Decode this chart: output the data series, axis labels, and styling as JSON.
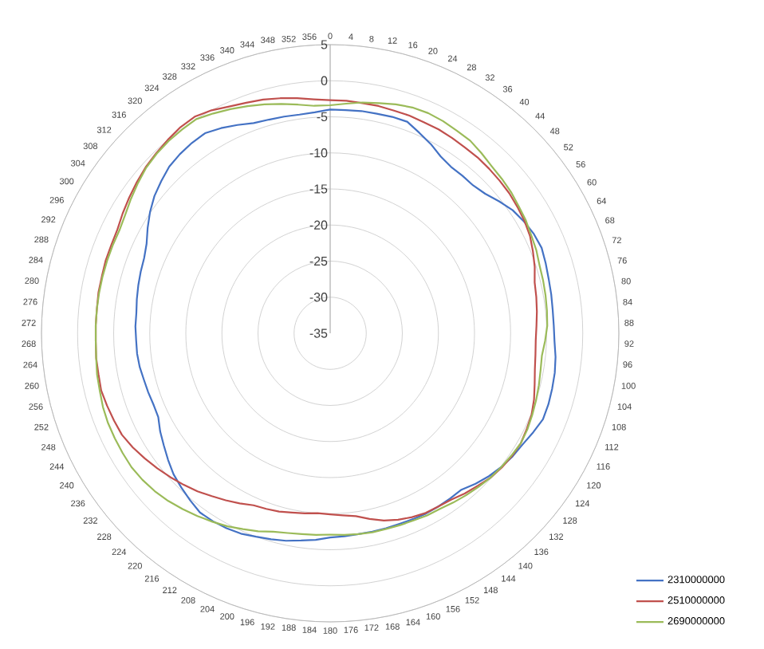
{
  "chart_data": {
    "type": "radar",
    "categories": [
      "0",
      "4",
      "8",
      "12",
      "16",
      "20",
      "24",
      "28",
      "32",
      "36",
      "40",
      "44",
      "48",
      "52",
      "56",
      "60",
      "64",
      "68",
      "72",
      "76",
      "80",
      "84",
      "88",
      "92",
      "96",
      "100",
      "104",
      "108",
      "112",
      "116",
      "120",
      "124",
      "128",
      "132",
      "136",
      "140",
      "144",
      "148",
      "152",
      "156",
      "160",
      "164",
      "168",
      "172",
      "176",
      "180",
      "184",
      "188",
      "192",
      "196",
      "200",
      "204",
      "208",
      "212",
      "216",
      "220",
      "224",
      "228",
      "232",
      "236",
      "240",
      "244",
      "248",
      "252",
      "256",
      "260",
      "264",
      "268",
      "272",
      "276",
      "280",
      "284",
      "288",
      "292",
      "296",
      "300",
      "304",
      "308",
      "312",
      "316",
      "320",
      "324",
      "328",
      "332",
      "336",
      "340",
      "344",
      "348",
      "352",
      "356"
    ],
    "series": [
      {
        "name": "2310000000",
        "color": "#4472c4",
        "values": [
          -4,
          -4,
          -3.9,
          -3.9,
          -3.8,
          -3.8,
          -4.6,
          -5.3,
          -6.1,
          -6.5,
          -6.5,
          -6.5,
          -6.1,
          -5.3,
          -4.5,
          -4,
          -3.6,
          -3.4,
          -3.6,
          -3.8,
          -3.9,
          -4,
          -4,
          -3.9,
          -3.6,
          -3.4,
          -3.3,
          -3.2,
          -3.2,
          -3.7,
          -4.2,
          -4.5,
          -4.9,
          -5.4,
          -6,
          -6.7,
          -6.7,
          -6.7,
          -6.7,
          -6.8,
          -6.9,
          -6.9,
          -6.9,
          -6.9,
          -6.8,
          -6.7,
          -6.3,
          -6,
          -5.6,
          -5.3,
          -5,
          -4.6,
          -4.4,
          -4.3,
          -4.3,
          -4.8,
          -5.3,
          -5.8,
          -6.5,
          -7.2,
          -7.8,
          -8.5,
          -8.6,
          -8.5,
          -8.4,
          -8.2,
          -8.1,
          -8.1,
          -8,
          -8,
          -7.8,
          -7.6,
          -7.4,
          -7.2,
          -6.7,
          -5.8,
          -4.9,
          -4.1,
          -3.5,
          -2.9,
          -2.6,
          -2.4,
          -2.3,
          -2.8,
          -3.4,
          -4,
          -4.2,
          -4.3,
          -4.4,
          -4.3
        ]
      },
      {
        "name": "2510000000",
        "color": "#c0504d",
        "values": [
          -2.7,
          -2.7,
          -2.8,
          -2.8,
          -2.9,
          -2.9,
          -3,
          -3,
          -3.1,
          -3.2,
          -3.2,
          -3.3,
          -3.4,
          -3.5,
          -3.7,
          -3.9,
          -4.2,
          -4.7,
          -5.2,
          -5.8,
          -6,
          -6.2,
          -6.4,
          -6.5,
          -6.4,
          -6.2,
          -5.8,
          -5.3,
          -4.9,
          -4.7,
          -4.5,
          -4.6,
          -4.8,
          -5.1,
          -5.6,
          -6,
          -6.5,
          -6.7,
          -6.8,
          -7.1,
          -7.5,
          -8,
          -8.7,
          -9.4,
          -9.7,
          -9.9,
          -10,
          -9.8,
          -9.6,
          -9.3,
          -9.1,
          -8.9,
          -8.3,
          -7.7,
          -7.1,
          -6.4,
          -5.8,
          -5.2,
          -4.6,
          -4,
          -3.4,
          -2.9,
          -2.7,
          -2.5,
          -2.3,
          -2.4,
          -2.4,
          -2.5,
          -2.5,
          -2.5,
          -2.4,
          -2.4,
          -2.3,
          -2.3,
          -2.2,
          -1.8,
          -1.4,
          -1,
          -0.6,
          -0.3,
          0,
          0.3,
          0.4,
          0,
          -0.6,
          -1,
          -1.3,
          -1.7,
          -2.1,
          -2.5
        ]
      },
      {
        "name": "2690000000",
        "color": "#9bbb59",
        "values": [
          -3.4,
          -3.1,
          -2.7,
          -2.4,
          -2,
          -1.7,
          -1.6,
          -1.7,
          -1.9,
          -2,
          -2.4,
          -2.8,
          -3,
          -3.2,
          -3.5,
          -3.7,
          -4,
          -4.2,
          -4.5,
          -4.6,
          -4.7,
          -4.8,
          -4.9,
          -5.2,
          -5.5,
          -5.4,
          -5.2,
          -5,
          -4.8,
          -4.6,
          -4.5,
          -4.7,
          -4.9,
          -5.1,
          -5.4,
          -5.7,
          -6,
          -6.3,
          -6.4,
          -6.6,
          -6.7,
          -6.8,
          -6.8,
          -6.9,
          -7,
          -7.1,
          -7,
          -6.9,
          -6.7,
          -6.4,
          -5.8,
          -5.3,
          -4.7,
          -4.2,
          -3.7,
          -3.2,
          -2.7,
          -2.3,
          -2,
          -1.8,
          -1.8,
          -1.8,
          -1.8,
          -1.9,
          -2.1,
          -2.2,
          -2.4,
          -2.5,
          -2.5,
          -2.5,
          -2.5,
          -2.5,
          -2.5,
          -2.5,
          -2.5,
          -2.2,
          -1.7,
          -1.2,
          -0.7,
          -0.4,
          -0.2,
          -0.1,
          0,
          -0.5,
          -1,
          -1.5,
          -2,
          -2.5,
          -3,
          -3.4
        ]
      }
    ],
    "ylim": [
      -35,
      5
    ],
    "yticks": [
      -35,
      -30,
      -25,
      -20,
      -15,
      -10,
      -5,
      0,
      5
    ],
    "grid": "y",
    "legend": "bottom right"
  }
}
